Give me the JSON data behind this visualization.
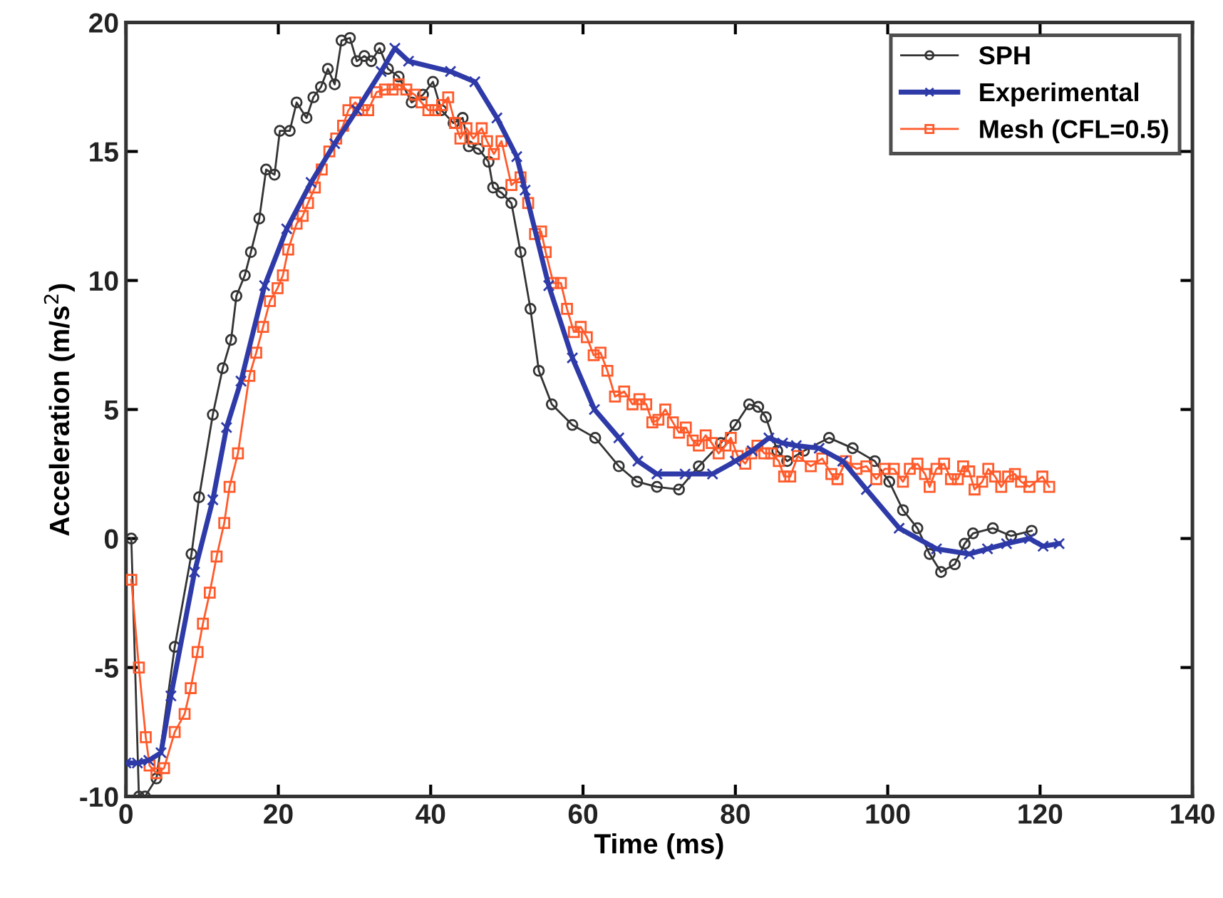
{
  "chart_data": {
    "type": "line",
    "xlabel": "Time (ms)",
    "ylabel": "Acceleration (m/s$^{2}$)",
    "xlim": [
      0,
      140
    ],
    "ylim": [
      -10,
      20
    ],
    "xticks": [
      0,
      20,
      40,
      60,
      80,
      100,
      120,
      140
    ],
    "yticks": [
      -10,
      -5,
      0,
      5,
      10,
      15,
      20
    ],
    "legend": "top right",
    "grid": false,
    "series": [
      {
        "name": "SPH",
        "color": "#333333",
        "marker": "circle",
        "x": [
          0.7,
          1.7,
          2.5,
          4,
          6.4,
          8.6,
          9.6,
          11.4,
          12.7,
          13.8,
          14.5,
          15.6,
          16.4,
          17.5,
          18.4,
          19.5,
          20.2,
          21.5,
          22.4,
          23.7,
          24.6,
          25.6,
          26.5,
          27.4,
          28.3,
          29.4,
          30.3,
          31.3,
          32.2,
          33.3,
          34.4,
          35.8,
          37.5,
          39,
          40.3,
          41.4,
          43,
          44.2,
          45,
          46.3,
          47.6,
          48.2,
          49.3,
          50.6,
          51.8,
          53.1,
          54.2,
          55.9,
          58.6,
          61.6,
          64.7,
          67.1,
          69.7,
          72.6,
          75.2,
          78.1,
          80,
          81.8,
          83,
          84,
          85.5,
          86.8,
          89,
          92.3,
          95.4,
          98.3,
          100.2,
          102,
          103.9,
          105.5,
          107,
          108.8,
          110.1,
          111.2,
          113.8,
          116.2,
          118.9
        ],
        "values": [
          0,
          -10,
          -10,
          -9.3,
          -4.2,
          -0.6,
          1.6,
          4.8,
          6.6,
          7.7,
          9.4,
          10.2,
          11.1,
          12.4,
          14.3,
          14.1,
          15.8,
          15.8,
          16.9,
          16.3,
          17.1,
          17.5,
          18.2,
          17.6,
          19.3,
          19.4,
          18.5,
          18.7,
          18.5,
          19,
          18.2,
          17.9,
          16.9,
          17.2,
          17.7,
          16.6,
          16.1,
          16.3,
          15.2,
          15.1,
          14.6,
          13.6,
          13.4,
          13,
          11.1,
          8.9,
          6.5,
          5.2,
          4.4,
          3.9,
          2.8,
          2.2,
          2,
          1.9,
          2.8,
          3.7,
          4.4,
          5.2,
          5.1,
          4.7,
          3.4,
          3,
          3.4,
          3.9,
          3.5,
          3,
          2.2,
          1.1,
          0.4,
          -0.6,
          -1.3,
          -1,
          -0.2,
          0.2,
          0.4,
          0.1,
          0.3
        ]
      },
      {
        "name": "Experimental",
        "color": "#2e3aa8",
        "marker": "cross",
        "x": [
          0,
          1.5,
          3,
          4.6,
          5.9,
          9,
          11.4,
          13.2,
          15.1,
          18.2,
          21.1,
          24.3,
          27.4,
          30.3,
          33.5,
          35.3,
          37.1,
          42.6,
          45.8,
          48.7,
          51.3,
          52.4,
          55.5,
          58.6,
          61.5,
          64.7,
          67.2,
          69.7,
          73.4,
          77,
          80,
          82.2,
          84.4,
          86.2,
          88,
          91,
          94.1,
          97.2,
          101.5,
          106.4,
          110.7,
          113.1,
          115.6,
          118.6,
          120.4,
          122.5
        ],
        "values": [
          -8.7,
          -8.7,
          -8.6,
          -8.3,
          -6.1,
          -1.3,
          1.5,
          4.3,
          6.1,
          9.8,
          12,
          13.8,
          15.3,
          16.6,
          18.1,
          19,
          18.5,
          18.1,
          17.7,
          16.3,
          14.8,
          13.5,
          9.8,
          7,
          5,
          3.9,
          3,
          2.5,
          2.5,
          2.5,
          3,
          3.4,
          3.9,
          3.7,
          3.6,
          3.5,
          3,
          1.9,
          0.4,
          -0.4,
          -0.6,
          -0.4,
          -0.2,
          0,
          -0.3,
          -0.2
        ]
      },
      {
        "name": "Mesh (CFL=0.5)",
        "color": "#ff5a2a",
        "marker": "square",
        "x": [
          0.7,
          1.7,
          2.6,
          3.1,
          4,
          5,
          6.4,
          7.7,
          8.5,
          9.4,
          10.1,
          11,
          11.9,
          12.9,
          13.6,
          14.7,
          16.2,
          17.1,
          18,
          18.9,
          19.9,
          20.6,
          21.3,
          22.4,
          23.2,
          23.9,
          24.8,
          25.7,
          26.7,
          27.6,
          28.5,
          29.2,
          30.1,
          31,
          31.8,
          32.9,
          34,
          35,
          35.8,
          36.8,
          37.9,
          38.8,
          39.7,
          40.6,
          41.5,
          42.3,
          43.2,
          43.9,
          44.7,
          45.6,
          46.7,
          47.4,
          48.3,
          49.3,
          50.6,
          51.8,
          52.8,
          53.7,
          54.5,
          55.1,
          56.1,
          57.1,
          57.9,
          58.8,
          59.7,
          60.5,
          61.4,
          62.3,
          63.2,
          64.2,
          65.4,
          66.5,
          67.4,
          68.3,
          69.1,
          69.9,
          70.8,
          71.8,
          72.6,
          73.5,
          74.4,
          75.2,
          76.1,
          76.9,
          77.8,
          78.7,
          79.4,
          80.3,
          81.3,
          82.1,
          82.9,
          83.8,
          84.7,
          85.7,
          86.4,
          87.2,
          88.2,
          89.9,
          91.4,
          92.6,
          93.4,
          94.5,
          95.9,
          97.2,
          98.5,
          99.6,
          100.8,
          102,
          102.9,
          103.9,
          104.9,
          105.5,
          106.4,
          107.4,
          108.3,
          109.2,
          109.9,
          110.7,
          111.4,
          112.4,
          113.2,
          114.1,
          114.9,
          115.8,
          116.7,
          117.5,
          118.6,
          120.3,
          121.2
        ],
        "values": [
          -1.6,
          -5,
          -7.7,
          -8.8,
          -9.1,
          -8.9,
          -7.5,
          -6.8,
          -5.8,
          -4.4,
          -3.3,
          -2.1,
          -0.7,
          0.6,
          2,
          3.3,
          6.3,
          7.2,
          8.2,
          9.2,
          9.7,
          10.2,
          11.2,
          12.2,
          12.5,
          13,
          13.6,
          14.3,
          15,
          15.5,
          16,
          16.6,
          16.9,
          16.6,
          16.6,
          17.3,
          17.4,
          17.4,
          17.6,
          17.4,
          17.2,
          16.9,
          16.6,
          16.6,
          16.8,
          17.1,
          16.1,
          15.5,
          15.9,
          15.5,
          15.9,
          15.4,
          14.9,
          15.4,
          13.7,
          14,
          13,
          11.8,
          11.9,
          11.1,
          9.9,
          9.9,
          8.9,
          8,
          8.2,
          7.8,
          7.1,
          7.2,
          6.5,
          5.5,
          5.7,
          5.2,
          5.4,
          5.2,
          4.5,
          4.6,
          5,
          4.5,
          4.1,
          4.3,
          3.8,
          3.6,
          4,
          3.7,
          3.3,
          3.6,
          3.9,
          3.2,
          2.9,
          3.3,
          3.6,
          3.3,
          3.3,
          3,
          2.4,
          2.4,
          3.2,
          2.8,
          3.1,
          2.5,
          2.3,
          3,
          2.7,
          2.8,
          2.3,
          2.7,
          2.7,
          2.2,
          2.7,
          2.9,
          2.5,
          2,
          2.7,
          2.9,
          2.3,
          2.3,
          2.8,
          2.6,
          1.9,
          2.2,
          2.7,
          2.4,
          2,
          2.4,
          2.5,
          2.2,
          2,
          2.4,
          2
        ]
      }
    ]
  }
}
